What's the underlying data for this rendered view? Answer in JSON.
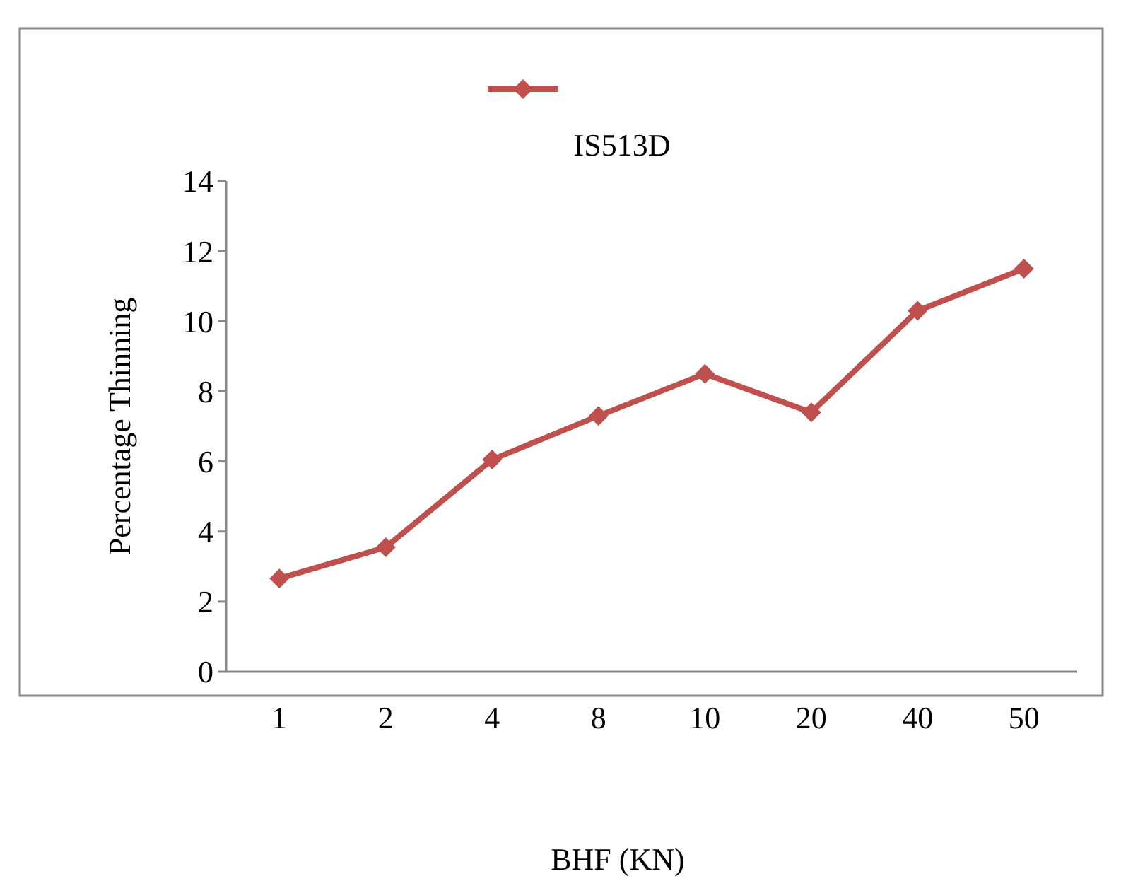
{
  "chart_data": {
    "type": "line",
    "xlabel": "BHF (KN)",
    "ylabel": "Percentage  Thinning",
    "categories": [
      "1",
      "2",
      "4",
      "8",
      "10",
      "20",
      "40",
      "50"
    ],
    "series": [
      {
        "name": "IS513D",
        "color": "#c0504d",
        "values": [
          2.66,
          3.55,
          6.05,
          7.3,
          8.5,
          7.4,
          10.3,
          11.5
        ]
      }
    ],
    "ylim": [
      0,
      14
    ],
    "yticks": [
      0,
      2,
      4,
      6,
      8,
      10,
      12,
      14
    ],
    "legend": "top",
    "marker": "diamond",
    "line_style": "solid",
    "grid": false
  }
}
